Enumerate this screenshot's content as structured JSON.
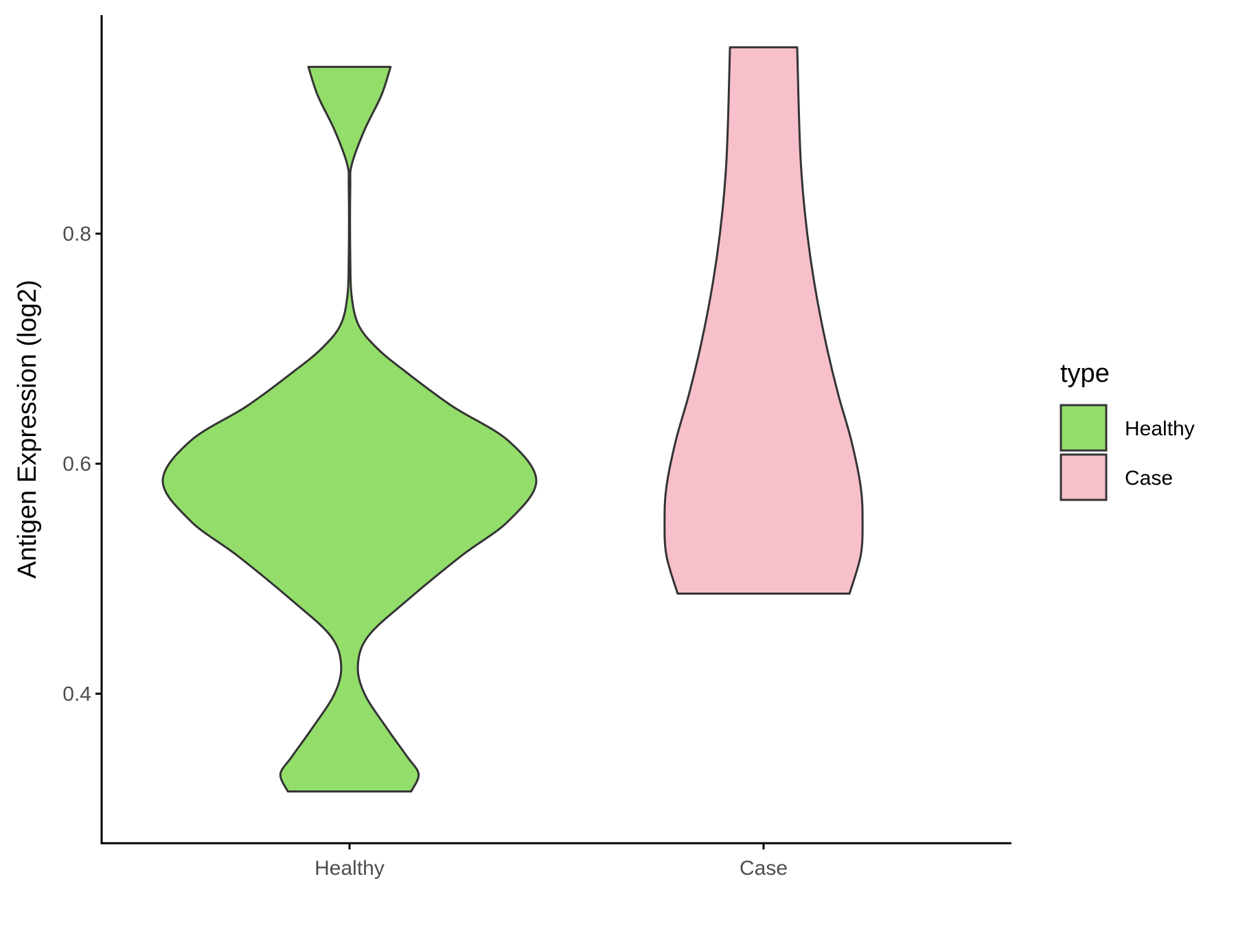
{
  "chart_data": {
    "type": "violin",
    "title": "",
    "xlabel": "",
    "ylabel": "Antigen Expression (log2)",
    "categories": [
      "Healthy",
      "Case"
    ],
    "ylim": [
      0.27,
      0.99
    ],
    "yticks": [
      0.4,
      0.6,
      0.8
    ],
    "ytick_labels": [
      "0.4",
      "0.6",
      "0.8"
    ],
    "grid": false,
    "legend": {
      "title": "type",
      "position": "right",
      "entries": [
        {
          "label": "Healthy",
          "color": "#93DD6B"
        },
        {
          "label": "Case",
          "color": "#F7C0CB"
        }
      ]
    },
    "series": [
      {
        "name": "Healthy",
        "color": "#93DD6B",
        "min": 0.315,
        "max": 0.945,
        "density_profile": [
          [
            0.315,
            0.33
          ],
          [
            0.33,
            0.37
          ],
          [
            0.345,
            0.31
          ],
          [
            0.37,
            0.2
          ],
          [
            0.4,
            0.08
          ],
          [
            0.425,
            0.045
          ],
          [
            0.45,
            0.1
          ],
          [
            0.48,
            0.3
          ],
          [
            0.52,
            0.6
          ],
          [
            0.55,
            0.85
          ],
          [
            0.585,
            1.0
          ],
          [
            0.62,
            0.85
          ],
          [
            0.65,
            0.55
          ],
          [
            0.68,
            0.3
          ],
          [
            0.7,
            0.15
          ],
          [
            0.72,
            0.05
          ],
          [
            0.745,
            0.012
          ],
          [
            0.78,
            0.004
          ],
          [
            0.84,
            0.004
          ],
          [
            0.86,
            0.012
          ],
          [
            0.89,
            0.08
          ],
          [
            0.92,
            0.17
          ],
          [
            0.945,
            0.22
          ]
        ]
      },
      {
        "name": "Case",
        "color": "#F7C0CB",
        "min": 0.487,
        "max": 0.962,
        "density_profile": [
          [
            0.487,
            0.46
          ],
          [
            0.52,
            0.52
          ],
          [
            0.55,
            0.53
          ],
          [
            0.58,
            0.52
          ],
          [
            0.62,
            0.47
          ],
          [
            0.66,
            0.4
          ],
          [
            0.7,
            0.34
          ],
          [
            0.74,
            0.29
          ],
          [
            0.78,
            0.25
          ],
          [
            0.82,
            0.22
          ],
          [
            0.86,
            0.2
          ],
          [
            0.9,
            0.19
          ],
          [
            0.93,
            0.185
          ],
          [
            0.962,
            0.18
          ]
        ]
      }
    ]
  }
}
